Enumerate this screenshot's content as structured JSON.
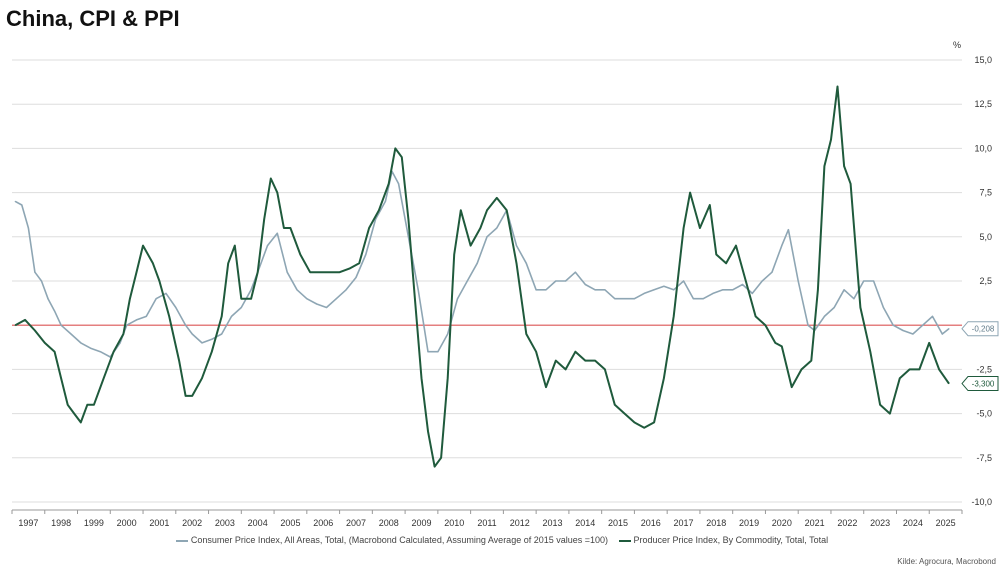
{
  "title": "China, CPI & PPI",
  "unit": "%",
  "source": "Kilde: Agrocura, Macrobond",
  "colors": {
    "cpi": "#8ea6b4",
    "ppi": "#1f5a3c",
    "zero": "#e05a5a",
    "grid": "#dddddd"
  },
  "chart_data": {
    "type": "line",
    "title": "China, CPI & PPI",
    "ylabel": "%",
    "ylim": [
      -10,
      15
    ],
    "yticks": [
      15,
      12.5,
      10,
      7.5,
      5,
      2.5,
      0,
      -2.5,
      -5,
      -7.5,
      -10
    ],
    "ytick_labels": [
      "15,0",
      "12,5",
      "10,0",
      "7,5",
      "5,0",
      "2,5",
      "0,0",
      "-2,5",
      "-5,0",
      "-7,5",
      "-10,0"
    ],
    "xlim": [
      1996.5,
      2025.5
    ],
    "xtick_labels": [
      "1997",
      "1998",
      "1999",
      "2000",
      "2001",
      "2002",
      "2003",
      "2004",
      "2005",
      "2006",
      "2007",
      "2008",
      "2009",
      "2010",
      "2011",
      "2012",
      "2013",
      "2014",
      "2015",
      "2016",
      "2017",
      "2018",
      "2019",
      "2020",
      "2021",
      "2022",
      "2023",
      "2024",
      "2025"
    ],
    "grid": true,
    "legend_position": "bottom",
    "series": [
      {
        "name": "Consumer Price Index, All Areas, Total, (Macrobond Calculated, Assuming Average of 2015 values =100)",
        "key": "cpi",
        "last_value_label": "-0,208",
        "x": [
          1996.6,
          1996.8,
          1997.0,
          1997.2,
          1997.4,
          1997.6,
          1997.8,
          1998.0,
          1998.3,
          1998.6,
          1998.9,
          1999.2,
          1999.5,
          1999.8,
          2000.0,
          2000.3,
          2000.6,
          2000.9,
          2001.2,
          2001.5,
          2001.8,
          2002.0,
          2002.3,
          2002.6,
          2002.9,
          2003.2,
          2003.5,
          2003.8,
          2004.0,
          2004.3,
          2004.6,
          2004.9,
          2005.2,
          2005.5,
          2005.8,
          2006.1,
          2006.4,
          2006.7,
          2007.0,
          2007.3,
          2007.6,
          2007.9,
          2008.1,
          2008.3,
          2008.6,
          2008.9,
          2009.2,
          2009.5,
          2009.8,
          2010.1,
          2010.4,
          2010.7,
          2011.0,
          2011.3,
          2011.6,
          2011.9,
          2012.2,
          2012.5,
          2012.8,
          2013.1,
          2013.4,
          2013.7,
          2014.0,
          2014.3,
          2014.6,
          2014.9,
          2015.2,
          2015.5,
          2015.8,
          2016.1,
          2016.4,
          2016.7,
          2017.0,
          2017.3,
          2017.6,
          2017.9,
          2018.2,
          2018.5,
          2018.8,
          2019.1,
          2019.4,
          2019.7,
          2020.0,
          2020.2,
          2020.5,
          2020.8,
          2021.0,
          2021.3,
          2021.6,
          2021.9,
          2022.2,
          2022.5,
          2022.8,
          2023.1,
          2023.4,
          2023.7,
          2024.0,
          2024.3,
          2024.6,
          2024.9,
          2025.1
        ],
        "values": [
          7.0,
          6.8,
          5.5,
          3.0,
          2.5,
          1.5,
          0.8,
          0.0,
          -0.5,
          -1.0,
          -1.3,
          -1.5,
          -1.8,
          -1.0,
          0.0,
          0.3,
          0.5,
          1.5,
          1.8,
          1.0,
          0.0,
          -0.5,
          -1.0,
          -0.8,
          -0.5,
          0.5,
          1.0,
          2.0,
          3.0,
          4.5,
          5.2,
          3.0,
          2.0,
          1.5,
          1.2,
          1.0,
          1.5,
          2.0,
          2.7,
          4.0,
          6.0,
          7.0,
          8.7,
          8.0,
          5.0,
          2.0,
          -1.5,
          -1.5,
          -0.5,
          1.5,
          2.5,
          3.5,
          5.0,
          5.5,
          6.5,
          4.5,
          3.5,
          2.0,
          2.0,
          2.5,
          2.5,
          3.0,
          2.3,
          2.0,
          2.0,
          1.5,
          1.5,
          1.5,
          1.8,
          2.0,
          2.2,
          2.0,
          2.5,
          1.5,
          1.5,
          1.8,
          2.0,
          2.0,
          2.3,
          1.8,
          2.5,
          3.0,
          4.5,
          5.4,
          2.5,
          0.0,
          -0.3,
          0.5,
          1.0,
          2.0,
          1.5,
          2.5,
          2.5,
          1.0,
          0.0,
          -0.3,
          -0.5,
          0.0,
          0.5,
          -0.5,
          -0.2
        ]
      },
      {
        "name": "Producer Price Index, By Commodity, Total, Total",
        "key": "ppi",
        "last_value_label": "-3,300",
        "x": [
          1996.6,
          1996.9,
          1997.2,
          1997.5,
          1997.8,
          1998.0,
          1998.2,
          1998.4,
          1998.6,
          1998.8,
          1999.0,
          1999.3,
          1999.6,
          1999.9,
          2000.1,
          2000.3,
          2000.5,
          2000.8,
          2001.0,
          2001.3,
          2001.6,
          2001.8,
          2002.0,
          2002.3,
          2002.6,
          2002.9,
          2003.1,
          2003.3,
          2003.5,
          2003.8,
          2004.0,
          2004.2,
          2004.4,
          2004.6,
          2004.8,
          2005.0,
          2005.3,
          2005.6,
          2005.9,
          2006.2,
          2006.5,
          2006.8,
          2007.1,
          2007.4,
          2007.7,
          2008.0,
          2008.2,
          2008.4,
          2008.6,
          2008.8,
          2009.0,
          2009.2,
          2009.4,
          2009.6,
          2009.8,
          2010.0,
          2010.2,
          2010.5,
          2010.8,
          2011.0,
          2011.3,
          2011.6,
          2011.9,
          2012.2,
          2012.5,
          2012.8,
          2013.1,
          2013.4,
          2013.7,
          2014.0,
          2014.3,
          2014.6,
          2014.9,
          2015.2,
          2015.5,
          2015.8,
          2016.1,
          2016.4,
          2016.7,
          2017.0,
          2017.2,
          2017.5,
          2017.8,
          2018.0,
          2018.3,
          2018.6,
          2018.9,
          2019.2,
          2019.5,
          2019.8,
          2020.0,
          2020.3,
          2020.6,
          2020.9,
          2021.1,
          2021.3,
          2021.5,
          2021.7,
          2021.9,
          2022.1,
          2022.4,
          2022.7,
          2023.0,
          2023.3,
          2023.6,
          2023.9,
          2024.2,
          2024.5,
          2024.8,
          2025.1
        ],
        "values": [
          0.0,
          0.3,
          -0.3,
          -1.0,
          -1.5,
          -3.0,
          -4.5,
          -5.0,
          -5.5,
          -4.5,
          -4.5,
          -3.0,
          -1.5,
          -0.5,
          1.5,
          3.0,
          4.5,
          3.5,
          2.5,
          0.5,
          -2.0,
          -4.0,
          -4.0,
          -3.0,
          -1.5,
          0.5,
          3.5,
          4.5,
          1.5,
          1.5,
          3.0,
          6.0,
          8.3,
          7.5,
          5.5,
          5.5,
          4.0,
          3.0,
          3.0,
          3.0,
          3.0,
          3.2,
          3.5,
          5.5,
          6.5,
          8.0,
          10.0,
          9.5,
          6.0,
          1.5,
          -3.0,
          -6.0,
          -8.0,
          -7.5,
          -3.0,
          4.0,
          6.5,
          4.5,
          5.5,
          6.5,
          7.2,
          6.5,
          3.5,
          -0.5,
          -1.5,
          -3.5,
          -2.0,
          -2.5,
          -1.5,
          -2.0,
          -2.0,
          -2.5,
          -4.5,
          -5.0,
          -5.5,
          -5.8,
          -5.5,
          -3.0,
          0.5,
          5.5,
          7.5,
          5.5,
          6.8,
          4.0,
          3.5,
          4.5,
          2.5,
          0.5,
          0.0,
          -1.0,
          -1.2,
          -3.5,
          -2.5,
          -2.0,
          2.0,
          9.0,
          10.5,
          13.5,
          9.0,
          8.0,
          1.0,
          -1.5,
          -4.5,
          -5.0,
          -3.0,
          -2.5,
          -2.5,
          -1.0,
          -2.5,
          -3.3
        ]
      }
    ]
  }
}
